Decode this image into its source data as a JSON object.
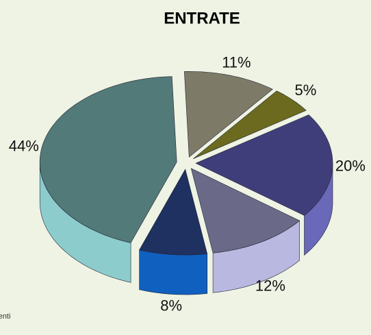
{
  "chart_data": {
    "type": "pie",
    "title": "ENTRATE",
    "values": [
      11,
      5,
      20,
      12,
      8,
      44
    ],
    "value_labels": [
      "11%",
      "5%",
      "20%",
      "12%",
      "8%",
      "44%"
    ],
    "colors": [
      "#7d7b68",
      "#6b6a1e",
      "#403e7a",
      "#6a6a88",
      "#1e3160",
      "#527a78"
    ],
    "side_colors": [
      "#a09e88",
      "#9a9838",
      "#6a68b8",
      "#b8b8e0",
      "#1060c0",
      "#8ccccc"
    ],
    "annotation": "renti"
  }
}
